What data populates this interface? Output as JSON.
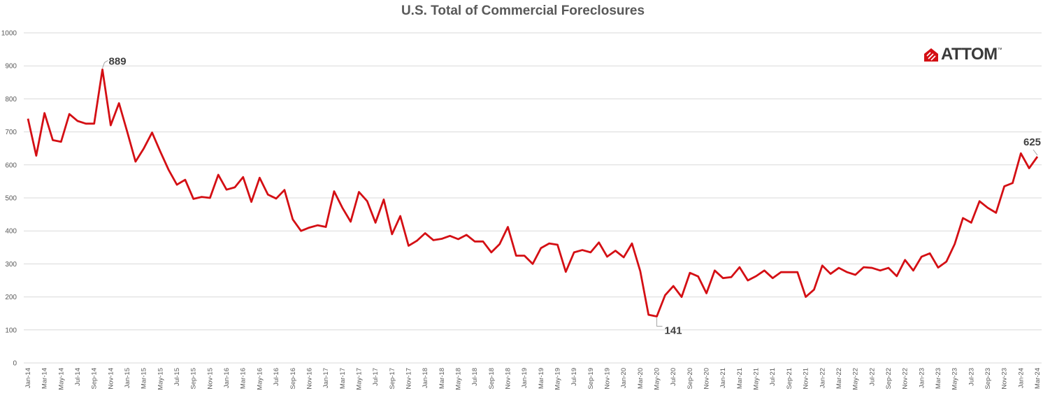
{
  "title": "U.S. Total of Commercial Foreclosures",
  "logo": {
    "text": "ATTOM",
    "tm": "™"
  },
  "chart_data": {
    "type": "line",
    "title": "U.S. Total of Commercial Foreclosures",
    "xlabel": "",
    "ylabel": "",
    "ylim": [
      0,
      1000
    ],
    "yticks": [
      0,
      100,
      200,
      300,
      400,
      500,
      600,
      700,
      800,
      900,
      1000
    ],
    "grid": true,
    "legend": "none",
    "line_color": "#d40f14",
    "x": [
      "Jan-14",
      "Feb-14",
      "Mar-14",
      "Apr-14",
      "May-14",
      "Jun-14",
      "Jul-14",
      "Aug-14",
      "Sep-14",
      "Oct-14",
      "Nov-14",
      "Dec-14",
      "Jan-15",
      "Feb-15",
      "Mar-15",
      "Apr-15",
      "May-15",
      "Jun-15",
      "Jul-15",
      "Aug-15",
      "Sep-15",
      "Oct-15",
      "Nov-15",
      "Dec-15",
      "Jan-16",
      "Feb-16",
      "Mar-16",
      "Apr-16",
      "May-16",
      "Jun-16",
      "Jul-16",
      "Aug-16",
      "Sep-16",
      "Oct-16",
      "Nov-16",
      "Dec-16",
      "Jan-17",
      "Feb-17",
      "Mar-17",
      "Apr-17",
      "May-17",
      "Jun-17",
      "Jul-17",
      "Aug-17",
      "Sep-17",
      "Oct-17",
      "Nov-17",
      "Dec-17",
      "Jan-18",
      "Feb-18",
      "Mar-18",
      "Apr-18",
      "May-18",
      "Jun-18",
      "Jul-18",
      "Aug-18",
      "Sep-18",
      "Oct-18",
      "Nov-18",
      "Dec-18",
      "Jan-19",
      "Feb-19",
      "Mar-19",
      "Apr-19",
      "May-19",
      "Jun-19",
      "Jul-19",
      "Aug-19",
      "Sep-19",
      "Oct-19",
      "Nov-19",
      "Dec-19",
      "Jan-20",
      "Feb-20",
      "Mar-20",
      "Apr-20",
      "May-20",
      "Jun-20",
      "Jul-20",
      "Aug-20",
      "Sep-20",
      "Oct-20",
      "Nov-20",
      "Dec-20",
      "Jan-21",
      "Feb-21",
      "Mar-21",
      "Apr-21",
      "May-21",
      "Jun-21",
      "Jul-21",
      "Aug-21",
      "Sep-21",
      "Oct-21",
      "Nov-21",
      "Dec-21",
      "Jan-22",
      "Feb-22",
      "Mar-22",
      "Apr-22",
      "May-22",
      "Jun-22",
      "Jul-22",
      "Aug-22",
      "Sep-22",
      "Oct-22",
      "Nov-22",
      "Dec-22",
      "Jan-23",
      "Feb-23",
      "Mar-23",
      "Apr-23",
      "May-23",
      "Jun-23",
      "Jul-23",
      "Aug-23",
      "Sep-23",
      "Oct-23",
      "Nov-23",
      "Dec-23",
      "Jan-24",
      "Feb-24",
      "Mar-24"
    ],
    "values": [
      740,
      628,
      757,
      675,
      670,
      754,
      733,
      725,
      725,
      889,
      720,
      787,
      700,
      610,
      650,
      698,
      640,
      585,
      540,
      555,
      497,
      503,
      500,
      570,
      525,
      532,
      563,
      488,
      561,
      510,
      498,
      524,
      435,
      400,
      410,
      417,
      412,
      520,
      470,
      428,
      518,
      490,
      425,
      495,
      390,
      445,
      355,
      370,
      393,
      372,
      376,
      385,
      375,
      388,
      368,
      368,
      335,
      360,
      412,
      325,
      325,
      300,
      348,
      362,
      358,
      276,
      335,
      342,
      335,
      365,
      322,
      340,
      320,
      362,
      278,
      146,
      141,
      205,
      233,
      200,
      273,
      262,
      211,
      280,
      257,
      260,
      290,
      250,
      263,
      280,
      257,
      275,
      275,
      275,
      200,
      222,
      295,
      270,
      288,
      275,
      267,
      290,
      288,
      280,
      288,
      263,
      312,
      280,
      322,
      332,
      289,
      307,
      360,
      439,
      425,
      490,
      470,
      455,
      535,
      545,
      635,
      590,
      625
    ],
    "xtick_labels": [
      "Jan-14",
      "Mar-14",
      "May-14",
      "Jul-14",
      "Sep-14",
      "Nov-14",
      "Jan-15",
      "Mar-15",
      "May-15",
      "Jul-15",
      "Sep-15",
      "Nov-15",
      "Jan-16",
      "Mar-16",
      "May-16",
      "Jul-16",
      "Sep-16",
      "Nov-16",
      "Jan-17",
      "Mar-17",
      "May-17",
      "Jul-17",
      "Sep-17",
      "Nov-17",
      "Jan-18",
      "Mar-18",
      "May-18",
      "Jul-18",
      "Sep-18",
      "Nov-18",
      "Jan-19",
      "Mar-19",
      "May-19",
      "Jul-19",
      "Sep-19",
      "Nov-19",
      "Jan-20",
      "Mar-20",
      "May-20",
      "Jul-20",
      "Sep-20",
      "Nov-20",
      "Jan-21",
      "Mar-21",
      "May-21",
      "Jul-21",
      "Sep-21",
      "Nov-21",
      "Jan-22",
      "Mar-22",
      "May-22",
      "Jul-22",
      "Sep-22",
      "Nov-22",
      "Jan-23",
      "Mar-23",
      "May-23",
      "Jul-23",
      "Sep-23",
      "Nov-23",
      "Jan-24",
      "Mar-24"
    ],
    "annotations": [
      {
        "label": "889",
        "x": "Oct-14",
        "value": 889
      },
      {
        "label": "141",
        "x": "May-20",
        "value": 141
      },
      {
        "label": "625",
        "x": "Mar-24",
        "value": 625
      }
    ]
  }
}
